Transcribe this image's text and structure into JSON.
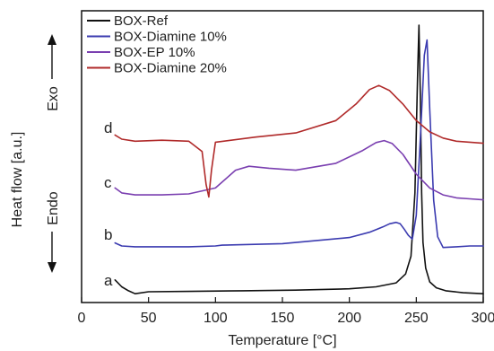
{
  "chart_data": {
    "type": "line",
    "title": "",
    "xlabel": "Temperature [°C]",
    "ylabel": "Heat flow [a.u.]",
    "exo_label": "Exo",
    "endo_label": "Endo",
    "xlim": [
      0,
      300
    ],
    "xticks": [
      0,
      50,
      100,
      150,
      200,
      250,
      300
    ],
    "y_ticks_shown": false,
    "grid": false,
    "legend_position": "top-left",
    "legend": [
      {
        "name": "BOX-Ref",
        "color": "#111111"
      },
      {
        "name": "BOX-Diamine 10%",
        "color": "#3b3bb0"
      },
      {
        "name": "BOX-EP 10%",
        "color": "#7a3fb0"
      },
      {
        "name": "BOX-Diamine 20%",
        "color": "#b02a2a"
      }
    ],
    "trace_labels": [
      "a",
      "b",
      "c",
      "d"
    ],
    "series": [
      {
        "name": "BOX-Ref",
        "trace": "a",
        "color": "#111111",
        "x": [
          25,
          30,
          35,
          40,
          50,
          80,
          120,
          160,
          200,
          220,
          235,
          242,
          246,
          249,
          251,
          252,
          253,
          254,
          255,
          257,
          260,
          265,
          272,
          285,
          300
        ],
        "y": [
          0.6,
          0.25,
          0.05,
          -0.1,
          0,
          0.02,
          0.05,
          0.08,
          0.15,
          0.25,
          0.45,
          0.9,
          1.8,
          5,
          11,
          13.5,
          10,
          5,
          2.5,
          1.2,
          0.5,
          0.2,
          0.05,
          -0.05,
          -0.1
        ]
      },
      {
        "name": "BOX-Diamine 10%",
        "trace": "b",
        "color": "#3b3bb0",
        "x": [
          25,
          30,
          40,
          60,
          80,
          100,
          105,
          150,
          200,
          215,
          225,
          230,
          235,
          238,
          241,
          244,
          247,
          250,
          253,
          256,
          258,
          260,
          263,
          266,
          270,
          280,
          290,
          300
        ],
        "y": [
          0.2,
          0,
          -0.05,
          -0.05,
          -0.05,
          0,
          0.05,
          0.15,
          0.55,
          0.9,
          1.25,
          1.45,
          1.55,
          1.45,
          1.1,
          0.7,
          0.45,
          2,
          7,
          12.5,
          13.5,
          9,
          3,
          0.6,
          -0.1,
          -0.05,
          0,
          0
        ]
      },
      {
        "name": "BOX-EP 10%",
        "trace": "c",
        "color": "#7a3fb0",
        "x": [
          25,
          30,
          40,
          60,
          80,
          100,
          115,
          125,
          140,
          160,
          190,
          210,
          220,
          226,
          232,
          240,
          250,
          260,
          270,
          280,
          290,
          300
        ],
        "y": [
          0.3,
          0.05,
          -0.05,
          -0.05,
          0,
          0.3,
          1.2,
          1.4,
          1.3,
          1.2,
          1.55,
          2.2,
          2.6,
          2.7,
          2.55,
          2,
          1,
          0.3,
          -0.05,
          -0.2,
          -0.25,
          -0.3
        ]
      },
      {
        "name": "BOX-Diamine 20%",
        "trace": "d",
        "color": "#b02a2a",
        "x": [
          25,
          30,
          40,
          60,
          80,
          90,
          93,
          95,
          97,
          100,
          130,
          160,
          190,
          205,
          215,
          222,
          230,
          240,
          250,
          260,
          270,
          280,
          290,
          300
        ],
        "y": [
          0.2,
          0,
          -0.1,
          -0.05,
          -0.1,
          -0.6,
          -2.2,
          -2.8,
          -1.5,
          -0.15,
          0.1,
          0.3,
          0.9,
          1.7,
          2.4,
          2.6,
          2.35,
          1.7,
          0.9,
          0.35,
          0.05,
          -0.1,
          -0.15,
          -0.2
        ]
      }
    ]
  }
}
